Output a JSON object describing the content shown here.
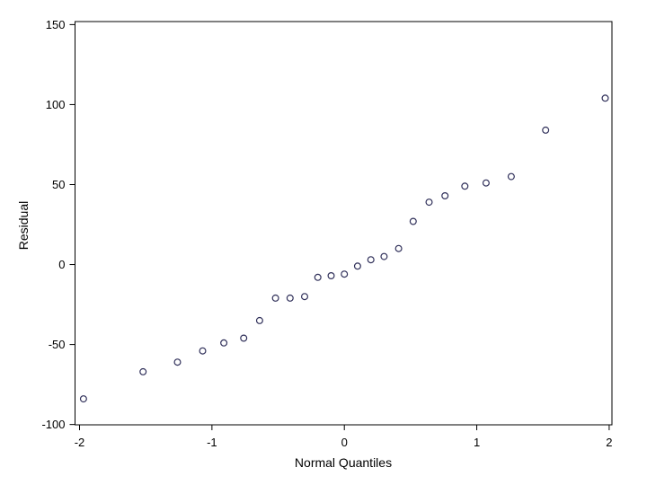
{
  "chart_data": {
    "type": "scatter",
    "title": "",
    "xlabel": "Normal Quantiles",
    "ylabel": "Residual",
    "xlim": [
      -2.034,
      2.021
    ],
    "ylim": [
      -100.2,
      151.9
    ],
    "x_ticks": [
      -2,
      -1,
      0,
      1,
      2
    ],
    "y_ticks": [
      -100,
      -50,
      0,
      50,
      100,
      150
    ],
    "grid": false,
    "legend": false,
    "marker": "open-circle",
    "points": [
      [
        -1.97,
        -84
      ],
      [
        -1.52,
        -67
      ],
      [
        -1.26,
        -61
      ],
      [
        -1.07,
        -54
      ],
      [
        -0.91,
        -49
      ],
      [
        -0.76,
        -46
      ],
      [
        -0.64,
        -35
      ],
      [
        -0.52,
        -21
      ],
      [
        -0.41,
        -21
      ],
      [
        -0.3,
        -20
      ],
      [
        -0.2,
        -8
      ],
      [
        -0.1,
        -7
      ],
      [
        0.0,
        -6
      ],
      [
        0.1,
        -1
      ],
      [
        0.2,
        3
      ],
      [
        0.3,
        5
      ],
      [
        0.41,
        10
      ],
      [
        0.52,
        27
      ],
      [
        0.64,
        39
      ],
      [
        0.76,
        43
      ],
      [
        0.91,
        49
      ],
      [
        1.07,
        51
      ],
      [
        1.26,
        55
      ],
      [
        1.52,
        84
      ],
      [
        1.97,
        104
      ]
    ]
  },
  "colors": {
    "background": "#ffffff",
    "axis": "#000000",
    "text": "#000000",
    "marker_stroke": "#30305a"
  }
}
